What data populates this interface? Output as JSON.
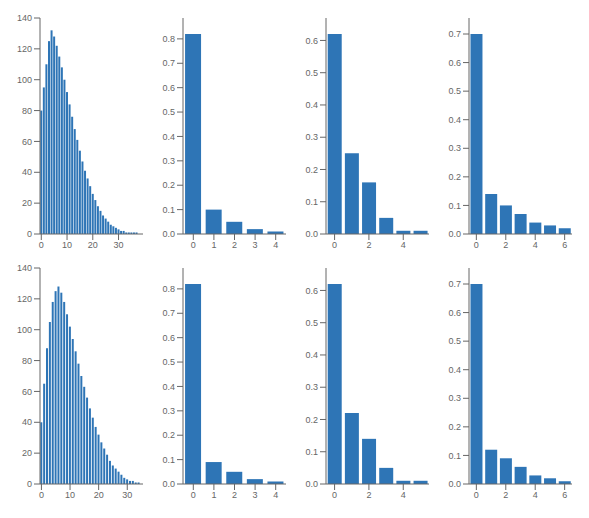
{
  "chart_data": [
    {
      "type": "bar",
      "x": [
        0,
        1,
        2,
        3,
        4,
        5,
        6,
        7,
        8,
        9,
        10,
        11,
        12,
        13,
        14,
        15,
        16,
        17,
        18,
        19,
        20,
        21,
        22,
        23,
        24,
        25,
        26,
        27,
        28,
        29,
        30,
        31,
        32,
        33,
        34,
        35,
        36,
        37,
        38,
        39
      ],
      "values": [
        80,
        95,
        110,
        125,
        132,
        128,
        122,
        115,
        108,
        100,
        92,
        84,
        76,
        68,
        61,
        54,
        47,
        41,
        36,
        31,
        26,
        22,
        18,
        15,
        12,
        10,
        8,
        6,
        5,
        4,
        3,
        2,
        2,
        1,
        1,
        1,
        1,
        1,
        0,
        0
      ],
      "color": "#2e75b6",
      "xlim": [
        -0.5,
        39.5
      ],
      "xticks": [
        0,
        10,
        20,
        30
      ],
      "ylim": [
        0,
        140
      ],
      "yticks": [
        0,
        20,
        40,
        60,
        80,
        100,
        120,
        140
      ],
      "grid": false
    },
    {
      "type": "bar",
      "x": [
        0,
        1,
        2,
        3,
        4
      ],
      "values": [
        0.82,
        0.1,
        0.05,
        0.02,
        0.01
      ],
      "color": "#2e75b6",
      "xlim": [
        -0.5,
        4.5
      ],
      "xticks": [
        0,
        1,
        2,
        3,
        4
      ],
      "ylim": [
        0,
        0.8856
      ],
      "yticks": [
        {
          "value": 0,
          "label": "0.0"
        },
        0.1,
        0.2,
        0.3,
        0.4,
        0.5,
        0.6,
        0.7,
        0.8
      ],
      "grid": false
    },
    {
      "type": "bar",
      "x": [
        0,
        1,
        2,
        3,
        4,
        5
      ],
      "values": [
        0.62,
        0.25,
        0.16,
        0.05,
        0.01,
        0.01
      ],
      "color": "#2e75b6",
      "xlim": [
        -0.5,
        5.5
      ],
      "xticks": [
        0,
        2,
        4
      ],
      "ylim": [
        0,
        0.6696
      ],
      "yticks": [
        {
          "value": 0,
          "label": "0.0"
        },
        0.1,
        0.2,
        0.3,
        0.4,
        0.5,
        0.6
      ],
      "grid": false
    },
    {
      "type": "bar",
      "x": [
        0,
        1,
        2,
        3,
        4,
        5,
        6
      ],
      "values": [
        0.7,
        0.14,
        0.1,
        0.07,
        0.04,
        0.03,
        0.02
      ],
      "color": "#2e75b6",
      "xlim": [
        -0.5,
        6.5
      ],
      "xticks": [
        0,
        2,
        4,
        6
      ],
      "ylim": [
        0,
        0.756
      ],
      "yticks": [
        {
          "value": 0,
          "label": "0.0"
        },
        0.1,
        0.2,
        0.3,
        0.4,
        0.5,
        0.6,
        0.7
      ],
      "grid": false
    },
    {
      "type": "bar",
      "x": [
        0,
        1,
        2,
        3,
        4,
        5,
        6,
        7,
        8,
        9,
        10,
        11,
        12,
        13,
        14,
        15,
        16,
        17,
        18,
        19,
        20,
        21,
        22,
        23,
        24,
        25,
        26,
        27,
        28,
        29,
        30,
        31,
        32,
        33,
        34,
        35
      ],
      "values": [
        40,
        65,
        88,
        105,
        118,
        125,
        128,
        124,
        118,
        110,
        102,
        94,
        86,
        78,
        70,
        63,
        56,
        49,
        43,
        37,
        32,
        27,
        23,
        19,
        15,
        12,
        10,
        8,
        6,
        4,
        3,
        2,
        2,
        1,
        1,
        0
      ],
      "color": "#2e75b6",
      "xlim": [
        -0.5,
        35.5
      ],
      "xticks": [
        0,
        10,
        20,
        30
      ],
      "ylim": [
        0,
        140
      ],
      "yticks": [
        0,
        20,
        40,
        60,
        80,
        100,
        120,
        140
      ],
      "grid": false
    },
    {
      "type": "bar",
      "x": [
        0,
        1,
        2,
        3,
        4
      ],
      "values": [
        0.82,
        0.09,
        0.05,
        0.02,
        0.01
      ],
      "color": "#2e75b6",
      "xlim": [
        -0.5,
        4.5
      ],
      "xticks": [
        0,
        1,
        2,
        3,
        4
      ],
      "ylim": [
        0,
        0.8856
      ],
      "yticks": [
        {
          "value": 0,
          "label": "0.0"
        },
        0.1,
        0.2,
        0.3,
        0.4,
        0.5,
        0.6,
        0.7,
        0.8
      ],
      "grid": false
    },
    {
      "type": "bar",
      "x": [
        0,
        1,
        2,
        3,
        4,
        5
      ],
      "values": [
        0.62,
        0.22,
        0.14,
        0.05,
        0.01,
        0.01
      ],
      "color": "#2e75b6",
      "xlim": [
        -0.5,
        5.5
      ],
      "xticks": [
        0,
        2,
        4
      ],
      "ylim": [
        0,
        0.6696
      ],
      "yticks": [
        {
          "value": 0,
          "label": "0.0"
        },
        0.1,
        0.2,
        0.3,
        0.4,
        0.5,
        0.6
      ],
      "grid": false
    },
    {
      "type": "bar",
      "x": [
        0,
        1,
        2,
        3,
        4,
        5,
        6
      ],
      "values": [
        0.7,
        0.12,
        0.09,
        0.06,
        0.03,
        0.02,
        0.01
      ],
      "color": "#2e75b6",
      "xlim": [
        -0.5,
        6.5
      ],
      "xticks": [
        0,
        2,
        4,
        6
      ],
      "ylim": [
        0,
        0.756
      ],
      "yticks": [
        {
          "value": 0,
          "label": "0.0"
        },
        0.1,
        0.2,
        0.3,
        0.4,
        0.5,
        0.6,
        0.7
      ],
      "grid": false
    }
  ]
}
